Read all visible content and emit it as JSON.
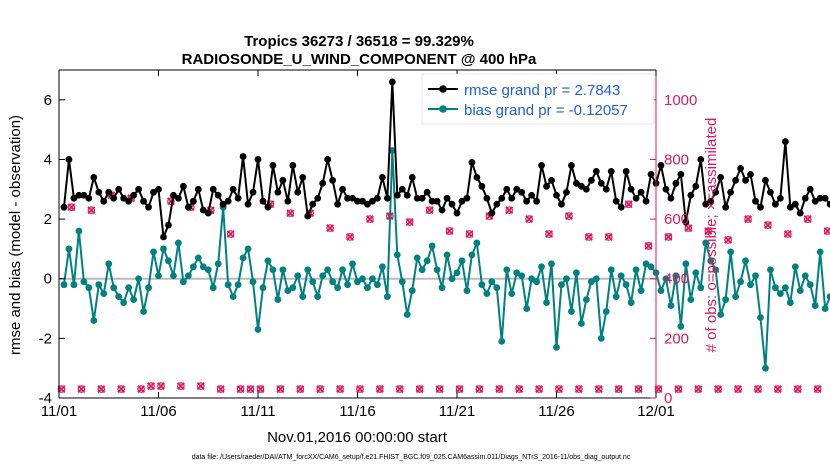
{
  "title_line1": "Tropics 36273 / 36518 = 99.329%",
  "title_line2": "RADIOSONDE_U_WIND_COMPONENT @ 400 hPa",
  "footer": "data file: /Users/raeder/DAI/ATM_forcXX/CAM6_setup/f.e21.FHIST_BGC.f09_025.CAM6assim.011/Diags_NTrS_2016-11/obs_diag_output.nc",
  "colors": {
    "rmse": "#000000",
    "bias": "#008080",
    "obs": "#d81b60",
    "legend_text": "#1f5fd6",
    "zero_line": "#bbbbbb"
  },
  "chart_data": {
    "type": "line",
    "title": "Tropics 36273 / 36518 = 99.329%",
    "subtitle": "RADIOSONDE_U_WIND_COMPONENT @ 400 hPa",
    "xlabel": "Nov.01,2016 00:00:00 start",
    "ylabel": "rmse and bias (model - observation)",
    "y2label": "# of obs: o=possible; ×=assimilated",
    "x_unit": "days since Nov.01,2016 00:00 (6-hourly)",
    "xlim": [
      0,
      30
    ],
    "ylim": [
      -4,
      7
    ],
    "y2lim": [
      0,
      1100
    ],
    "x_tick_values": [
      0,
      5,
      10,
      15,
      20,
      25,
      30
    ],
    "x_tick_labels": [
      "11/01",
      "11/06",
      "11/11",
      "11/16",
      "11/21",
      "11/26",
      "12/01"
    ],
    "y_ticks": [
      "-4",
      "-2",
      "0",
      "2",
      "4",
      "6"
    ],
    "y2_ticks": [
      "0",
      "200",
      "400",
      "600",
      "800",
      "1000"
    ],
    "legend": [
      {
        "label": "rmse grand pr = 2.7843",
        "series": "rmse"
      },
      {
        "label": "bias grand pr = -0.12057",
        "series": "bias"
      }
    ],
    "legend_position": "top-right",
    "grid": false,
    "series": [
      {
        "name": "rmse",
        "axis": "left",
        "x_start": 0.25,
        "x_step": 0.25,
        "values": [
          2.4,
          4.0,
          2.7,
          2.8,
          2.8,
          2.7,
          3.4,
          2.9,
          2.6,
          2.9,
          2.7,
          3.0,
          2.7,
          2.6,
          2.8,
          3.0,
          2.6,
          2.4,
          2.9,
          3.0,
          1.4,
          1.8,
          2.8,
          2.7,
          3.1,
          2.4,
          2.6,
          3.0,
          2.3,
          2.2,
          3.0,
          2.8,
          2.5,
          2.6,
          3.0,
          2.7,
          4.1,
          2.5,
          2.9,
          4.0,
          2.6,
          2.4,
          3.8,
          2.9,
          3.3,
          2.6,
          3.8,
          2.9,
          3.4,
          2.1,
          2.5,
          2.7,
          3.2,
          4.0,
          3.3,
          2.5,
          3.0,
          2.7,
          2.7,
          2.6,
          2.6,
          2.5,
          2.6,
          2.7,
          3.4,
          2.7,
          6.6,
          2.8,
          3.0,
          2.8,
          3.4,
          2.7,
          2.7,
          2.9,
          2.6,
          2.6,
          2.3,
          2.7,
          2.5,
          2.2,
          2.6,
          2.7,
          3.9,
          3.4,
          3.1,
          2.7,
          2.2,
          2.5,
          2.7,
          3.0,
          2.7,
          3.0,
          2.9,
          2.6,
          2.8,
          2.6,
          3.8,
          3.1,
          3.3,
          2.8,
          2.5,
          2.9,
          3.8,
          3.2,
          3.1,
          3.0,
          3.3,
          3.6,
          3.2,
          3.0,
          3.6,
          2.6,
          2.4,
          3.6,
          3.0,
          2.7,
          2.9,
          2.6,
          3.5,
          3.2,
          3.8,
          3.0,
          2.7,
          3.2,
          3.5,
          1.9,
          2.8,
          3.1,
          4.0,
          2.5,
          2.6,
          2.9,
          3.4,
          2.4,
          2.9,
          3.3,
          3.7,
          3.3,
          3.5,
          2.6,
          2.4,
          3.3,
          2.9,
          2.5,
          2.7,
          4.6,
          2.4,
          2.5,
          2.2,
          2.7,
          3.0,
          2.6,
          2.7,
          2.7,
          2.5,
          2.7,
          2.9,
          2.8,
          3.4,
          2.8,
          3.3,
          2.8,
          2.9,
          2.5,
          2.7,
          2.6,
          2.5,
          3.6,
          3.2,
          2.6,
          2.8,
          2.4,
          2.6,
          2.7,
          2.9,
          2.5,
          2.6,
          2.9,
          2.8,
          3.0,
          3.3,
          3.1,
          3.8,
          3.4,
          2.4
        ]
      },
      {
        "name": "bias",
        "axis": "left",
        "x_start": 0.25,
        "x_step": 0.25,
        "values": [
          -0.2,
          1.0,
          -0.2,
          1.6,
          -0.1,
          -0.3,
          -1.4,
          -0.2,
          -0.5,
          0.5,
          -0.3,
          -0.6,
          -0.8,
          -0.3,
          -0.7,
          0.0,
          -1.1,
          -0.3,
          0.9,
          0.1,
          1.0,
          0.6,
          0.1,
          1.2,
          -0.1,
          0.1,
          0.4,
          0.7,
          0.4,
          0.3,
          -0.3,
          0.5,
          2.4,
          -0.2,
          -0.6,
          -0.2,
          0.7,
          1.0,
          -0.1,
          -1.7,
          -0.3,
          0.6,
          0.3,
          -0.7,
          0.3,
          -0.4,
          -0.3,
          0.1,
          -0.6,
          0.3,
          -0.1,
          -0.6,
          0.1,
          0.3,
          -0.1,
          -0.3,
          0.3,
          -0.2,
          0.5,
          -0.1,
          0.0,
          -0.3,
          0.0,
          -0.2,
          0.4,
          -0.6,
          4.3,
          0.8,
          -0.1,
          -1.2,
          -0.4,
          0.7,
          0.3,
          0.6,
          1.1,
          0.3,
          -0.3,
          0.8,
          0.0,
          0.2,
          0.6,
          -0.4,
          0.8,
          1.2,
          -0.2,
          -0.5,
          -0.1,
          -0.3,
          -2.1,
          0.3,
          -0.5,
          0.2,
          0.1,
          -1.0,
          0.0,
          -0.1,
          0.4,
          -0.8,
          0.5,
          -2.3,
          -0.2,
          0.0,
          -1.1,
          0.2,
          -1.5,
          -0.7,
          -0.1,
          0.0,
          -2.0,
          -1.1,
          0.3,
          -0.6,
          0.1,
          -0.2,
          -0.8,
          0.3,
          -0.4,
          0.5,
          0.4,
          0.2,
          -0.4,
          0.0,
          -0.9,
          0.1,
          -1.6,
          0.5,
          -0.7,
          0.2,
          -0.3,
          1.2,
          0.6,
          0.3,
          -1.2,
          -0.7,
          0.9,
          -0.6,
          -0.1,
          0.6,
          -0.2,
          0.1,
          -1.3,
          -3.0,
          0.3,
          -0.3,
          -0.5,
          -0.3,
          -0.8,
          0.4,
          -0.4,
          0.1,
          -0.2,
          -0.9,
          0.9,
          -1.0,
          -0.6,
          0.2,
          0.9,
          -0.6,
          -0.4,
          -2.1,
          0.4,
          -0.8,
          -0.4,
          -0.3,
          -0.1,
          0.0,
          -1.1,
          -0.7,
          -0.2,
          -1.4,
          0.5,
          -0.1,
          -0.2,
          -0.2,
          0.4,
          -0.1,
          -0.8,
          -1.3,
          -0.7,
          0.2,
          -0.3,
          -0.5,
          -0.4,
          -0.7,
          -0.8,
          1.0
        ]
      },
      {
        "name": "# of obs possible (o)",
        "axis": "right",
        "x_start": 0.125,
        "x_step": 0.5,
        "values": [
          30,
          640,
          30,
          630,
          30,
          680,
          30,
          670,
          30,
          40,
          40,
          660,
          40,
          640,
          40,
          630,
          30,
          550,
          30,
          30,
          30,
          650,
          30,
          620,
          30,
          620,
          30,
          570,
          30,
          540,
          30,
          600,
          30,
          610,
          30,
          590,
          30,
          630,
          30,
          560,
          30,
          550,
          30,
          610,
          30,
          630,
          30,
          600,
          30,
          550,
          30,
          610,
          30,
          540,
          30,
          540,
          30,
          650,
          30,
          510,
          30,
          540,
          30,
          570,
          30,
          560,
          30,
          530,
          30,
          600,
          30,
          580,
          30,
          550,
          30,
          600,
          30,
          560,
          30,
          620,
          30,
          640,
          30,
          560,
          30,
          630,
          30,
          620,
          30,
          600,
          30,
          640,
          30,
          640,
          30,
          590,
          30,
          630,
          30,
          640,
          30,
          620,
          30,
          600,
          30,
          590,
          30,
          620,
          30,
          520,
          30,
          600,
          30,
          600,
          30,
          610,
          30,
          590,
          30,
          600,
          30,
          540,
          30,
          600,
          30,
          610,
          30,
          640,
          30,
          530,
          30,
          580,
          30,
          630,
          30,
          620,
          30,
          610,
          30,
          640,
          30,
          620,
          30,
          560,
          30,
          620,
          30,
          600,
          30,
          640,
          30,
          650,
          30,
          510,
          30,
          530,
          30,
          600,
          30,
          640,
          30,
          610,
          30,
          650,
          30,
          600,
          30,
          640,
          30,
          590,
          30,
          640,
          30,
          620,
          30,
          600,
          30,
          640,
          30,
          640,
          30,
          570,
          30,
          510,
          30,
          630,
          30,
          560,
          30,
          500,
          30,
          540,
          30,
          550,
          30,
          640,
          30,
          610,
          30,
          640,
          30,
          520,
          30,
          10
        ]
      }
    ]
  }
}
